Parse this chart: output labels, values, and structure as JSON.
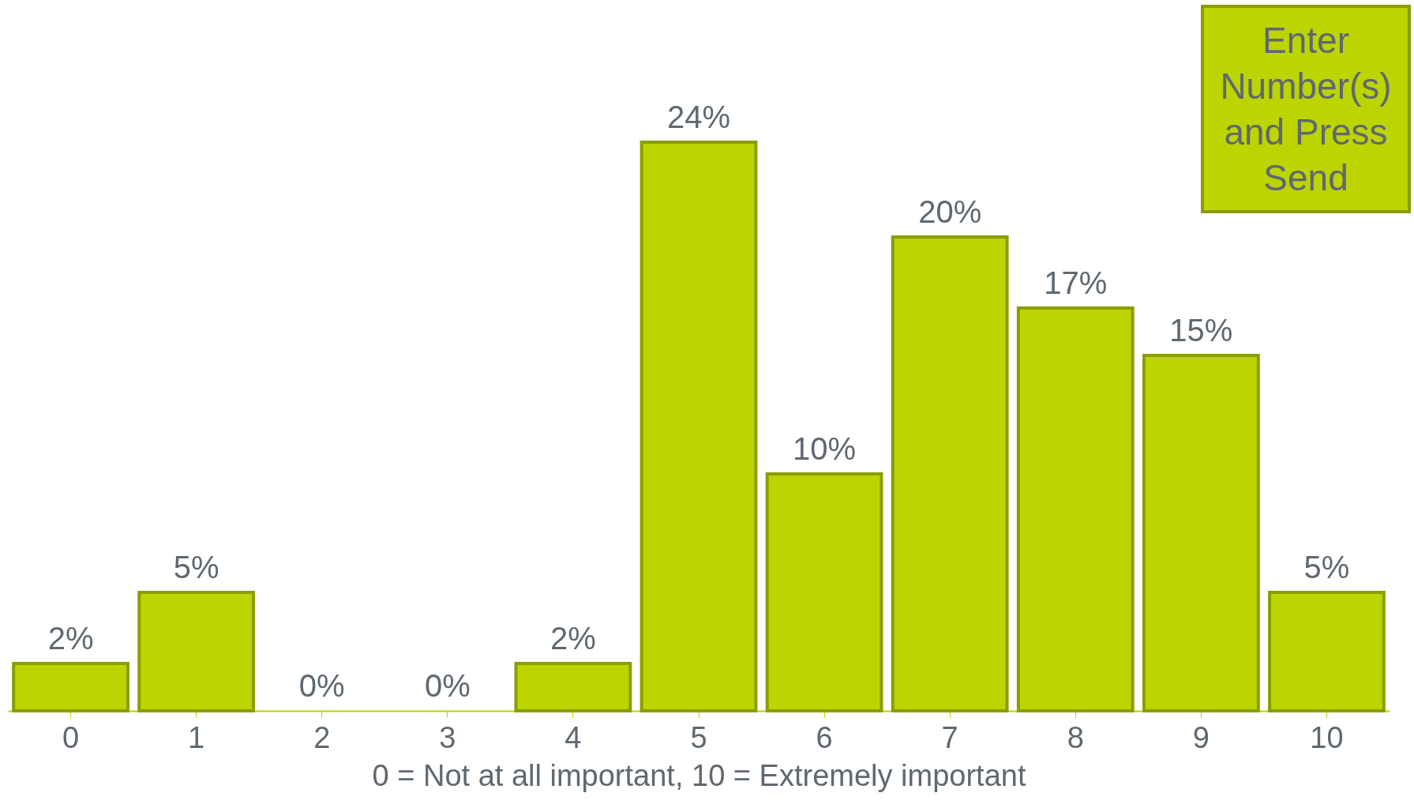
{
  "chart_data": {
    "type": "bar",
    "categories": [
      "0",
      "1",
      "2",
      "3",
      "4",
      "5",
      "6",
      "7",
      "8",
      "9",
      "10"
    ],
    "values": [
      2,
      5,
      0,
      0,
      2,
      24,
      10,
      20,
      17,
      15,
      5
    ],
    "value_labels": [
      "2%",
      "5%",
      "0%",
      "0%",
      "2%",
      "24%",
      "10%",
      "20%",
      "17%",
      "15%",
      "5%"
    ],
    "color": "#bcd400",
    "xlabel": "0 = Not at all important, 10 = Extremely important",
    "annotations": [
      "Enter Number(s) and Press Send"
    ],
    "grid": false,
    "tick_labels": "x"
  }
}
